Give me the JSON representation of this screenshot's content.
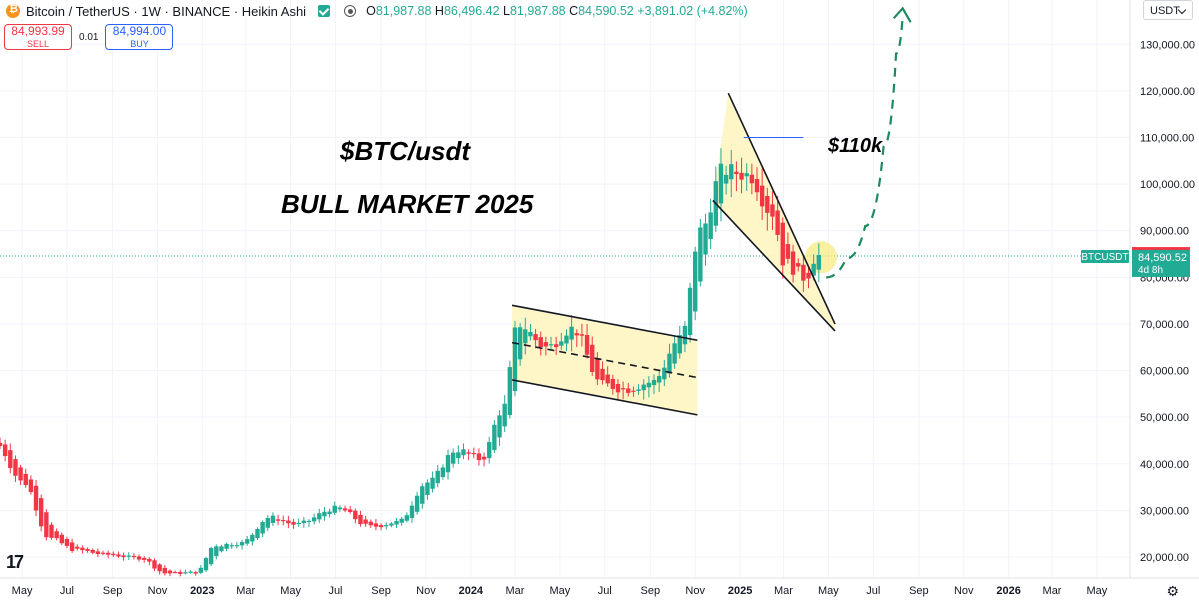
{
  "header": {
    "title": "Bitcoin / TetherUS · 1W · BINANCE · Heikin Ashi",
    "ohlc": {
      "O": "81,987.88",
      "H": "86,496.42",
      "L": "81,987.88",
      "C": "84,590.52",
      "change": "+3,891.02 (+4.82%)"
    }
  },
  "trade": {
    "sell_price": "84,993.99",
    "sell_label": "SELL",
    "spread": "0.01",
    "buy_price": "84,994.00",
    "buy_label": "BUY"
  },
  "currency": "USDT",
  "colors": {
    "up": "#22ab94",
    "down": "#f23645",
    "channel_fill": "#fff5c2",
    "highlight": "#f7e97a",
    "arrow": "#1e8a5e",
    "label_line": "#2962ff"
  },
  "icons": {
    "settings": "gear-icon",
    "logo": "tradingview-logo",
    "symbol": "bitcoin-logo"
  },
  "chart_data": {
    "type": "candlestick",
    "symbol": "BTCUSDT",
    "interval": "1W",
    "style": "Heikin Ashi",
    "y_range": [
      15500,
      139500
    ],
    "y_ticks": [
      20000,
      30000,
      40000,
      50000,
      60000,
      70000,
      80000,
      90000,
      100000,
      110000,
      120000,
      130000
    ],
    "y_tick_labels": [
      "20,000.00",
      "30,000.00",
      "40,000.00",
      "50,000.00",
      "60,000.00",
      "70,000.00",
      "80,000.00",
      "90,000.00",
      "100,000.00",
      "110,000.00",
      "120,000.00",
      "130,000.00"
    ],
    "x_labels": [
      "May",
      "Jul",
      "Sep",
      "Nov",
      "2023",
      "Mar",
      "May",
      "Jul",
      "Sep",
      "Nov",
      "2024",
      "Mar",
      "May",
      "Jul",
      "Sep",
      "Nov",
      "2025",
      "Mar",
      "May",
      "Jul",
      "Sep",
      "Nov",
      "2026",
      "Mar",
      "May"
    ],
    "x_label_bold": [
      "2023",
      "2024",
      "2025",
      "2026"
    ],
    "price_anchors": [
      [
        "2022-04-01",
        44500
      ],
      [
        "2022-05-10",
        36000
      ],
      [
        "2022-06-15",
        24000
      ],
      [
        "2022-07-20",
        21500
      ],
      [
        "2022-09-01",
        20500
      ],
      [
        "2022-10-15",
        19800
      ],
      [
        "2022-11-20",
        16500
      ],
      [
        "2022-12-31",
        16700
      ],
      [
        "2023-01-25",
        22500
      ],
      [
        "2023-03-01",
        23000
      ],
      [
        "2023-04-10",
        28500
      ],
      [
        "2023-05-15",
        27000
      ],
      [
        "2023-07-10",
        30500
      ],
      [
        "2023-08-25",
        26500
      ],
      [
        "2023-10-01",
        27500
      ],
      [
        "2023-11-10",
        36000
      ],
      [
        "2023-12-20",
        43000
      ],
      [
        "2024-01-22",
        41000
      ],
      [
        "2024-02-20",
        51500
      ],
      [
        "2024-03-12",
        70000
      ],
      [
        "2024-04-20",
        65000
      ],
      [
        "2024-05-25",
        69000
      ],
      [
        "2024-07-05",
        57000
      ],
      [
        "2024-08-05",
        56000
      ],
      [
        "2024-09-10",
        57500
      ],
      [
        "2024-10-20",
        67000
      ],
      [
        "2024-11-15",
        90000
      ],
      [
        "2024-12-16",
        103000
      ],
      [
        "2025-01-20",
        102000
      ],
      [
        "2025-02-20",
        94000
      ],
      [
        "2025-03-10",
        83000
      ],
      [
        "2025-04-07",
        80000
      ],
      [
        "2025-04-21",
        84590
      ]
    ],
    "last_price": "84,590.52",
    "last_price_value": 84590.52,
    "ask_price": "84,994.00",
    "ask_price_value": 84994,
    "symbol_label": "BTCUSDT",
    "countdown": "4d 8h",
    "annotations": {
      "title_text": "$BTC/usdt",
      "subtitle_text": "BULL MARKET 2025",
      "target_text": "$110k"
    },
    "drawings": {
      "channel_upper": [
        [
          "2024-02-26",
          74000
        ],
        [
          "2024-11-04",
          66500
        ]
      ],
      "channel_mid": [
        [
          "2024-02-26",
          66000
        ],
        [
          "2024-11-04",
          58500
        ]
      ],
      "channel_lower": [
        [
          "2024-02-26",
          58000
        ],
        [
          "2024-11-04",
          50500
        ]
      ],
      "wedge_upper": [
        [
          "2024-12-16",
          119500
        ],
        [
          "2025-05-10",
          70000
        ]
      ],
      "wedge_lower": [
        [
          "2024-11-25",
          96500
        ],
        [
          "2025-05-10",
          68500
        ]
      ],
      "target_line": [
        [
          "2025-01-06",
          110000
        ],
        [
          "2025-03-28",
          110000
        ]
      ],
      "projection": [
        [
          "2025-04-28",
          80000
        ],
        [
          "2025-05-25",
          84000
        ],
        [
          "2025-06-20",
          91000
        ],
        [
          "2025-07-15",
          108000
        ],
        [
          "2025-08-01",
          128000
        ],
        [
          "2025-08-10",
          136000
        ]
      ],
      "highlight_circle": [
        "2025-04-21",
        84300
      ]
    }
  }
}
